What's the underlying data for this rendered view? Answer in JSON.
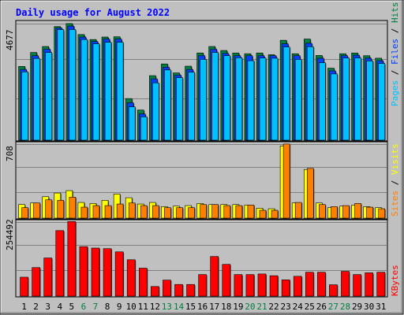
{
  "title": "Daily usage for August 2022",
  "colors": {
    "background": "#c0c0c0",
    "title": "#0000ff",
    "hits": "#008040",
    "files": "#0040ff",
    "pages": "#00c0ff",
    "visits": "#ffff00",
    "sites": "#ff8000",
    "kbytes": "#ff0000",
    "weekday_label": "#000000",
    "weekend_label": "#008040"
  },
  "legend": {
    "pages": "Pages",
    "files": "Files",
    "hits": "Hits",
    "sites": "Sites",
    "visits": "Visits",
    "kbytes": "KBytes",
    "sep": " / "
  },
  "chart_data": [
    {
      "type": "bar",
      "title": "Daily usage for August 2022",
      "ylabel": "4677",
      "ylim": [
        0,
        4677
      ],
      "x": [
        1,
        2,
        3,
        4,
        5,
        6,
        7,
        8,
        9,
        10,
        11,
        12,
        13,
        14,
        15,
        16,
        17,
        18,
        19,
        20,
        21,
        22,
        23,
        24,
        25,
        26,
        27,
        28,
        29,
        30,
        31
      ],
      "weekend_days": [
        6,
        7,
        13,
        14,
        20,
        21,
        27,
        28
      ],
      "series": [
        {
          "name": "Hits",
          "values": [
            2960,
            3520,
            3760,
            4560,
            4680,
            4240,
            4040,
            4140,
            4150,
            1670,
            1210,
            2590,
            3060,
            2700,
            2970,
            3500,
            3760,
            3600,
            3500,
            3470,
            3500,
            3430,
            4010,
            3470,
            4060,
            3400,
            2890,
            3470,
            3500,
            3390,
            3290
          ]
        },
        {
          "name": "Files",
          "values": [
            2840,
            3390,
            3650,
            4500,
            4580,
            4140,
            3960,
            4060,
            4060,
            1500,
            1050,
            2460,
            2930,
            2610,
            2840,
            3390,
            3650,
            3480,
            3390,
            3390,
            3390,
            3390,
            3870,
            3390,
            3890,
            3290,
            2780,
            3390,
            3410,
            3290,
            3190
          ]
        },
        {
          "name": "Pages",
          "values": [
            2740,
            3280,
            3520,
            4440,
            4440,
            4040,
            3870,
            3930,
            3930,
            1340,
            940,
            2300,
            2820,
            2510,
            2730,
            3240,
            3520,
            3390,
            3310,
            3190,
            3300,
            3290,
            3740,
            3240,
            3750,
            3110,
            2660,
            3300,
            3300,
            3180,
            3080
          ]
        }
      ]
    },
    {
      "type": "bar",
      "ylabel": "708",
      "ylim": [
        0,
        708
      ],
      "x": [
        1,
        2,
        3,
        4,
        5,
        6,
        7,
        8,
        9,
        10,
        11,
        12,
        13,
        14,
        15,
        16,
        17,
        18,
        19,
        20,
        21,
        22,
        23,
        24,
        25,
        26,
        27,
        28,
        29,
        30,
        31
      ],
      "series": [
        {
          "name": "Visits",
          "values": [
            130,
            145,
            205,
            240,
            263,
            150,
            140,
            170,
            230,
            195,
            135,
            150,
            110,
            115,
            120,
            140,
            130,
            130,
            130,
            125,
            95,
            90,
            690,
            145,
            465,
            145,
            100,
            115,
            125,
            110,
            100
          ]
        },
        {
          "name": "Sites",
          "values": [
            100,
            145,
            175,
            170,
            200,
            105,
            120,
            120,
            135,
            145,
            120,
            120,
            100,
            100,
            100,
            130,
            130,
            120,
            120,
            125,
            75,
            75,
            708,
            150,
            475,
            130,
            110,
            120,
            140,
            105,
            90
          ]
        }
      ]
    },
    {
      "type": "bar",
      "ylabel": "254492",
      "ylim": [
        0,
        254492
      ],
      "x": [
        1,
        2,
        3,
        4,
        5,
        6,
        7,
        8,
        9,
        10,
        11,
        12,
        13,
        14,
        15,
        16,
        17,
        18,
        19,
        20,
        21,
        22,
        23,
        24,
        25,
        26,
        27,
        28,
        29,
        30,
        31
      ],
      "series": [
        {
          "name": "KBytes",
          "values": [
            65000,
            98000,
            131000,
            225000,
            256000,
            170000,
            165000,
            163000,
            152000,
            125000,
            96000,
            33000,
            55000,
            40000,
            40000,
            74000,
            136000,
            109000,
            74000,
            74000,
            76000,
            70000,
            56000,
            68000,
            82000,
            82000,
            39000,
            85000,
            74000,
            80000,
            82000
          ]
        }
      ]
    }
  ]
}
